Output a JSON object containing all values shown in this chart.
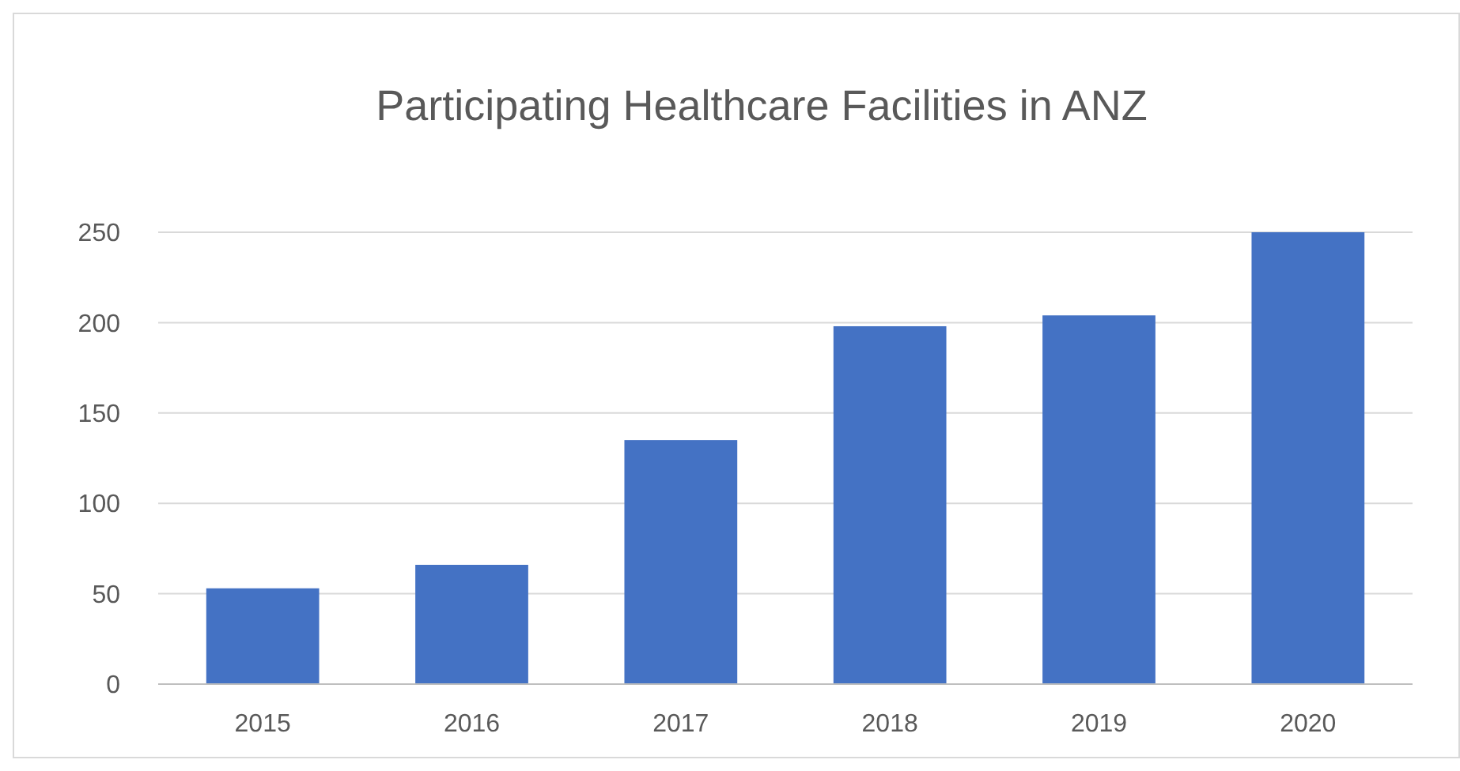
{
  "chart_data": {
    "type": "bar",
    "title": "Participating Healthcare Facilities in ANZ",
    "categories": [
      "2015",
      "2016",
      "2017",
      "2018",
      "2019",
      "2020"
    ],
    "values": [
      53,
      66,
      135,
      198,
      204,
      250
    ],
    "color": "#4472c4",
    "ylim": [
      0,
      250
    ],
    "yticks": [
      0,
      50,
      100,
      150,
      200,
      250
    ],
    "grid": "y"
  }
}
